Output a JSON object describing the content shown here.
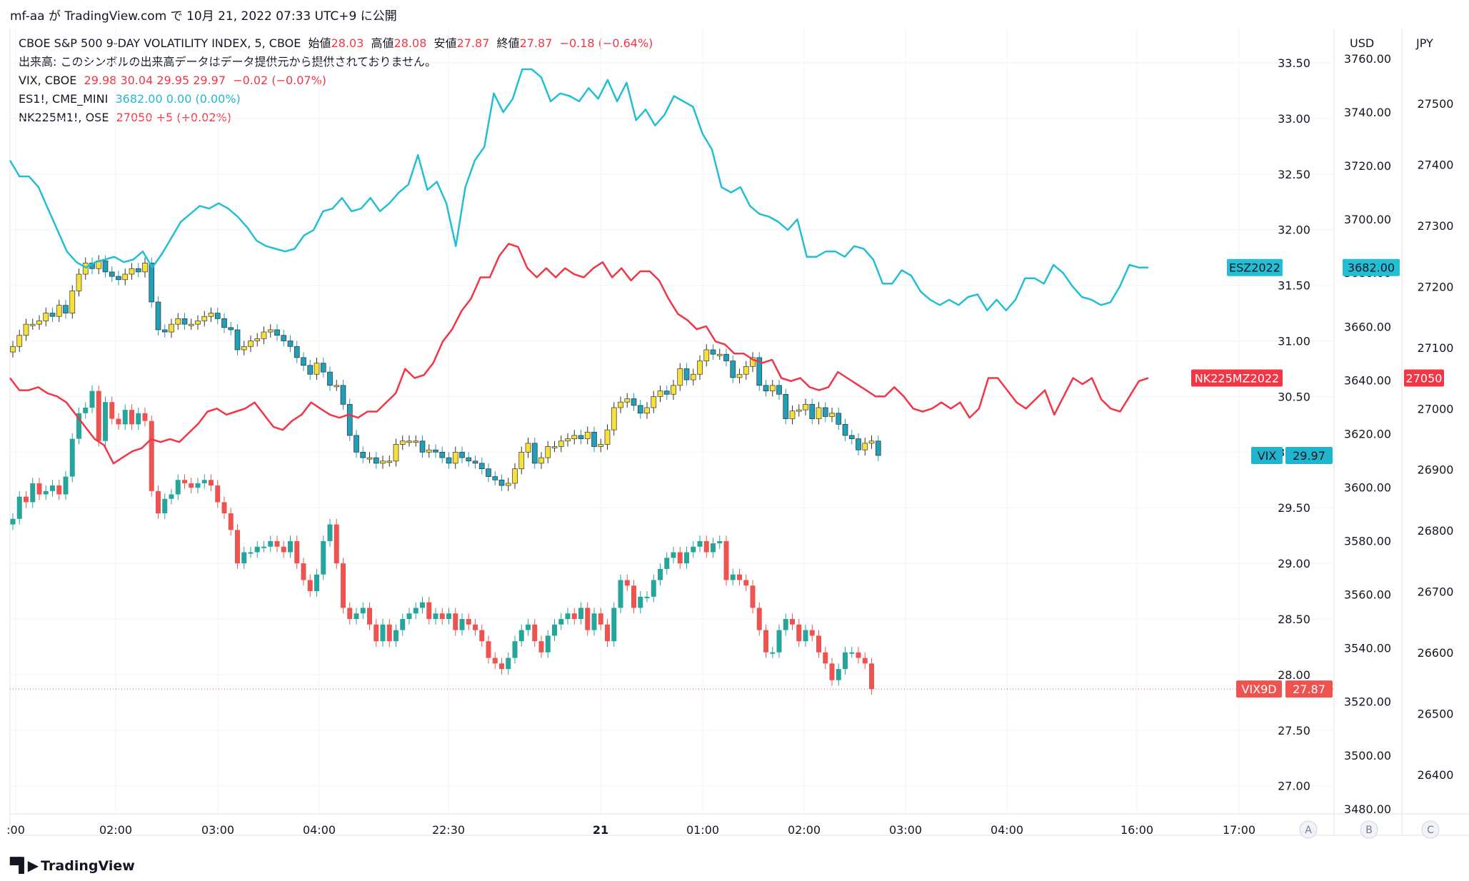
{
  "header": {
    "publish_line": "mf-aa が TradingView.com で 10月 21, 2022 07:33 UTC+9 に公開"
  },
  "legend": {
    "main": {
      "title": "CBOE S&P 500 9-DAY VOLATILITY INDEX, 5, CBOE",
      "o_label": "始値",
      "o_value": "28.03",
      "h_label": "高値",
      "h_value": "28.08",
      "l_label": "安値",
      "l_value": "27.87",
      "c_label": "終値",
      "c_value": "27.87",
      "change": "−0.18 (−0.64%)"
    },
    "volume_note": "出来高: このシンボルの出来高データはデータ提供元から提供されておりません。",
    "vix": {
      "name": "VIX, CBOE",
      "values": "29.98  30.04  29.95  29.97",
      "change": "−0.02 (−0.07%)"
    },
    "es": {
      "name": "ES1!, CME_MINI",
      "values": "3682.00  0.00 (0.00%)"
    },
    "nk": {
      "name": "NK225M1!, OSE",
      "values": "27050  +5 (+0.02%)"
    }
  },
  "axes": {
    "left_axis_ticks": [
      "33.50",
      "33.00",
      "32.50",
      "32.00",
      "31.50",
      "31.00",
      "30.50",
      "30.00",
      "29.50",
      "29.00",
      "28.50",
      "28.00",
      "27.50",
      "27.00"
    ],
    "usd_header": "USD",
    "usd_ticks": [
      "3760.00",
      "3740.00",
      "3720.00",
      "3700.00",
      "3680.00",
      "3660.00",
      "3640.00",
      "3620.00",
      "3600.00",
      "3580.00",
      "3560.00",
      "3540.00",
      "3520.00",
      "3500.00",
      "3480.00"
    ],
    "jpy_header": "JPY",
    "jpy_ticks": [
      "27500",
      "27400",
      "27300",
      "27200",
      "27100",
      "27000",
      "26900",
      "26800",
      "26700",
      "26600",
      "26500",
      "26400"
    ],
    "time_ticks": [
      ":00",
      "02:00",
      "03:00",
      "04:00",
      "22:30",
      "21",
      "01:00",
      "02:00",
      "03:00",
      "04:00",
      "16:00",
      "17:00"
    ],
    "axis_buttons": [
      "A",
      "B",
      "C"
    ]
  },
  "labels": {
    "esz": {
      "name": "ESZ2022",
      "value": "3682.00"
    },
    "nk": {
      "name": "NK225MZ2022",
      "value": "27050"
    },
    "vix": {
      "name": "VIX",
      "value": "29.97"
    },
    "vix9d": {
      "name": "VIX9D",
      "value": "27.87"
    }
  },
  "colors": {
    "up": "#26a69a",
    "down": "#ef5350",
    "es_line": "#22bfd4",
    "nk_line": "#f23645",
    "vix_up": "#f5e13a",
    "vix_down": "#1f9fb8",
    "grid": "#f0f3fa"
  },
  "footer": {
    "brand": "TradingView"
  },
  "chart_data": {
    "type": "candlestick+line",
    "title": "CBOE S&P 500 9-DAY VOLATILITY INDEX, 5, CBOE",
    "x": [
      ":00",
      "02:00",
      "03:00",
      "04:00",
      "22:30",
      "21",
      "01:00",
      "02:00",
      "03:00",
      "04:00",
      "16:00",
      "17:00"
    ],
    "y_left_range": [
      26.85,
      33.85
    ],
    "series": [
      {
        "name": "VIX9D",
        "kind": "candles",
        "axis": "left",
        "closes": [
          29.4,
          29.6,
          29.55,
          29.72,
          29.62,
          29.65,
          29.7,
          29.62,
          29.78,
          30.12,
          30.35,
          30.4,
          30.55,
          30.1,
          30.45,
          30.3,
          30.25,
          30.38,
          30.25,
          30.35,
          30.28,
          29.65,
          29.45,
          29.58,
          29.62,
          29.75,
          29.72,
          29.68,
          29.72,
          29.75,
          29.7,
          29.55,
          29.45,
          29.3,
          29.0,
          29.1,
          29.1,
          29.15,
          29.15,
          29.2,
          29.15,
          29.1,
          29.2,
          29.0,
          28.85,
          28.75,
          28.9,
          29.2,
          29.35,
          29.0,
          28.6,
          28.5,
          28.55,
          28.6,
          28.45,
          28.3,
          28.45,
          28.3,
          28.4,
          28.5,
          28.55,
          28.6,
          28.65,
          28.5,
          28.55,
          28.5,
          28.55,
          28.4,
          28.5,
          28.45,
          28.4,
          28.3,
          28.15,
          28.1,
          28.05,
          28.15,
          28.3,
          28.4,
          28.45,
          28.3,
          28.2,
          28.35,
          28.45,
          28.5,
          28.55,
          28.5,
          28.6,
          28.4,
          28.55,
          28.45,
          28.3,
          28.6,
          28.85,
          28.8,
          28.6,
          28.7,
          28.7,
          28.85,
          28.95,
          29.05,
          29.1,
          29.0,
          29.1,
          29.15,
          29.2,
          29.1,
          29.18,
          29.2,
          28.85,
          28.9,
          28.85,
          28.8,
          28.6,
          28.4,
          28.2,
          28.2,
          28.4,
          28.5,
          28.45,
          28.3,
          28.4,
          28.35,
          28.2,
          28.1,
          27.95,
          28.05,
          28.2,
          28.2,
          28.15,
          28.1,
          27.87
        ]
      },
      {
        "name": "VIX",
        "kind": "candles",
        "axis": "left",
        "closes": [
          30.95,
          31.05,
          31.15,
          31.15,
          31.18,
          31.25,
          31.22,
          31.32,
          31.25,
          31.45,
          31.6,
          31.7,
          31.65,
          31.72,
          31.62,
          31.58,
          31.55,
          31.6,
          31.65,
          31.62,
          31.7,
          31.35,
          31.1,
          31.08,
          31.15,
          31.2,
          31.15,
          31.15,
          31.18,
          31.22,
          31.25,
          31.2,
          31.12,
          31.1,
          30.92,
          30.95,
          31.0,
          31.02,
          31.08,
          31.1,
          31.05,
          31.0,
          30.95,
          30.85,
          30.78,
          30.7,
          30.8,
          30.72,
          30.6,
          30.6,
          30.43,
          30.15,
          30.0,
          29.95,
          29.95,
          29.9,
          29.92,
          29.92,
          30.07,
          30.1,
          30.1,
          30.1,
          30.0,
          30.02,
          30.0,
          29.95,
          29.9,
          30.0,
          29.95,
          29.92,
          29.9,
          29.85,
          29.78,
          29.75,
          29.7,
          29.72,
          29.85,
          30.0,
          30.08,
          29.9,
          29.95,
          30.05,
          30.05,
          30.1,
          30.12,
          30.15,
          30.12,
          30.18,
          30.05,
          30.07,
          30.2,
          30.4,
          30.45,
          30.48,
          30.42,
          30.35,
          30.4,
          30.5,
          30.55,
          30.52,
          30.6,
          30.75,
          30.65,
          30.7,
          30.82,
          30.92,
          30.88,
          30.88,
          30.82,
          30.67,
          30.7,
          30.77,
          30.85,
          30.6,
          30.55,
          30.6,
          30.52,
          30.3,
          30.37,
          30.38,
          30.43,
          30.3,
          30.4,
          30.32,
          30.35,
          30.25,
          30.15,
          30.12,
          30.02,
          30.08,
          30.1,
          29.97
        ]
      },
      {
        "name": "ESZ2022",
        "kind": "line",
        "axis": "USD",
        "points": [
          3722,
          3716,
          3716,
          3712,
          3704,
          3696,
          3688,
          3684,
          3682,
          3684,
          3685,
          3686,
          3684,
          3685,
          3688,
          3682,
          3687,
          3693,
          3699,
          3702,
          3705,
          3704,
          3706,
          3704,
          3701,
          3697,
          3692,
          3690,
          3689,
          3688,
          3689,
          3694,
          3696,
          3703,
          3704,
          3708,
          3703,
          3704,
          3708,
          3703,
          3706,
          3710,
          3713,
          3724,
          3711,
          3714,
          3706,
          3690,
          3712,
          3722,
          3727,
          3747,
          3740,
          3745,
          3756,
          3756,
          3753,
          3744,
          3747,
          3746,
          3744,
          3749,
          3745,
          3752,
          3744,
          3751,
          3737,
          3741,
          3735,
          3739,
          3746,
          3744,
          3742,
          3732,
          3726,
          3712,
          3710,
          3712,
          3705,
          3702,
          3701,
          3699,
          3696,
          3700,
          3686,
          3686,
          3688,
          3688,
          3686,
          3690,
          3689,
          3685,
          3676,
          3676,
          3681,
          3679,
          3673,
          3670,
          3668,
          3670,
          3668,
          3671,
          3672,
          3666,
          3670,
          3666,
          3670,
          3678,
          3678,
          3676,
          3683,
          3680,
          3675,
          3671,
          3670,
          3668,
          3669,
          3675,
          3683,
          3682,
          3682
        ]
      },
      {
        "name": "NK225MZ2022",
        "kind": "line",
        "axis": "JPY",
        "points": [
          27050,
          27030,
          27030,
          27035,
          27025,
          27020,
          27010,
          26990,
          26970,
          26950,
          26940,
          26910,
          26920,
          26930,
          26935,
          26950,
          26945,
          26950,
          26945,
          26960,
          26975,
          26995,
          27000,
          26990,
          26995,
          27000,
          27010,
          26990,
          26970,
          26965,
          26980,
          26990,
          27010,
          27000,
          26990,
          26985,
          26990,
          26985,
          26995,
          26995,
          27010,
          27025,
          27065,
          27050,
          27055,
          27075,
          27110,
          27130,
          27160,
          27180,
          27215,
          27215,
          27250,
          27270,
          27265,
          27230,
          27215,
          27230,
          27215,
          27230,
          27220,
          27215,
          27230,
          27240,
          27215,
          27230,
          27210,
          27225,
          27225,
          27210,
          27180,
          27155,
          27145,
          27130,
          27135,
          27110,
          27105,
          27090,
          27090,
          27080,
          27075,
          27080,
          27050,
          27045,
          27050,
          27035,
          27030,
          27035,
          27060,
          27050,
          27040,
          27030,
          27020,
          27020,
          27035,
          27020,
          27000,
          26995,
          27000,
          27010,
          27000,
          27010,
          26985,
          27000,
          27050,
          27050,
          27030,
          27010,
          27000,
          27015,
          27030,
          26990,
          27020,
          27050,
          27040,
          27050,
          27015,
          27000,
          26995,
          27020,
          27045,
          27050
        ]
      }
    ]
  }
}
